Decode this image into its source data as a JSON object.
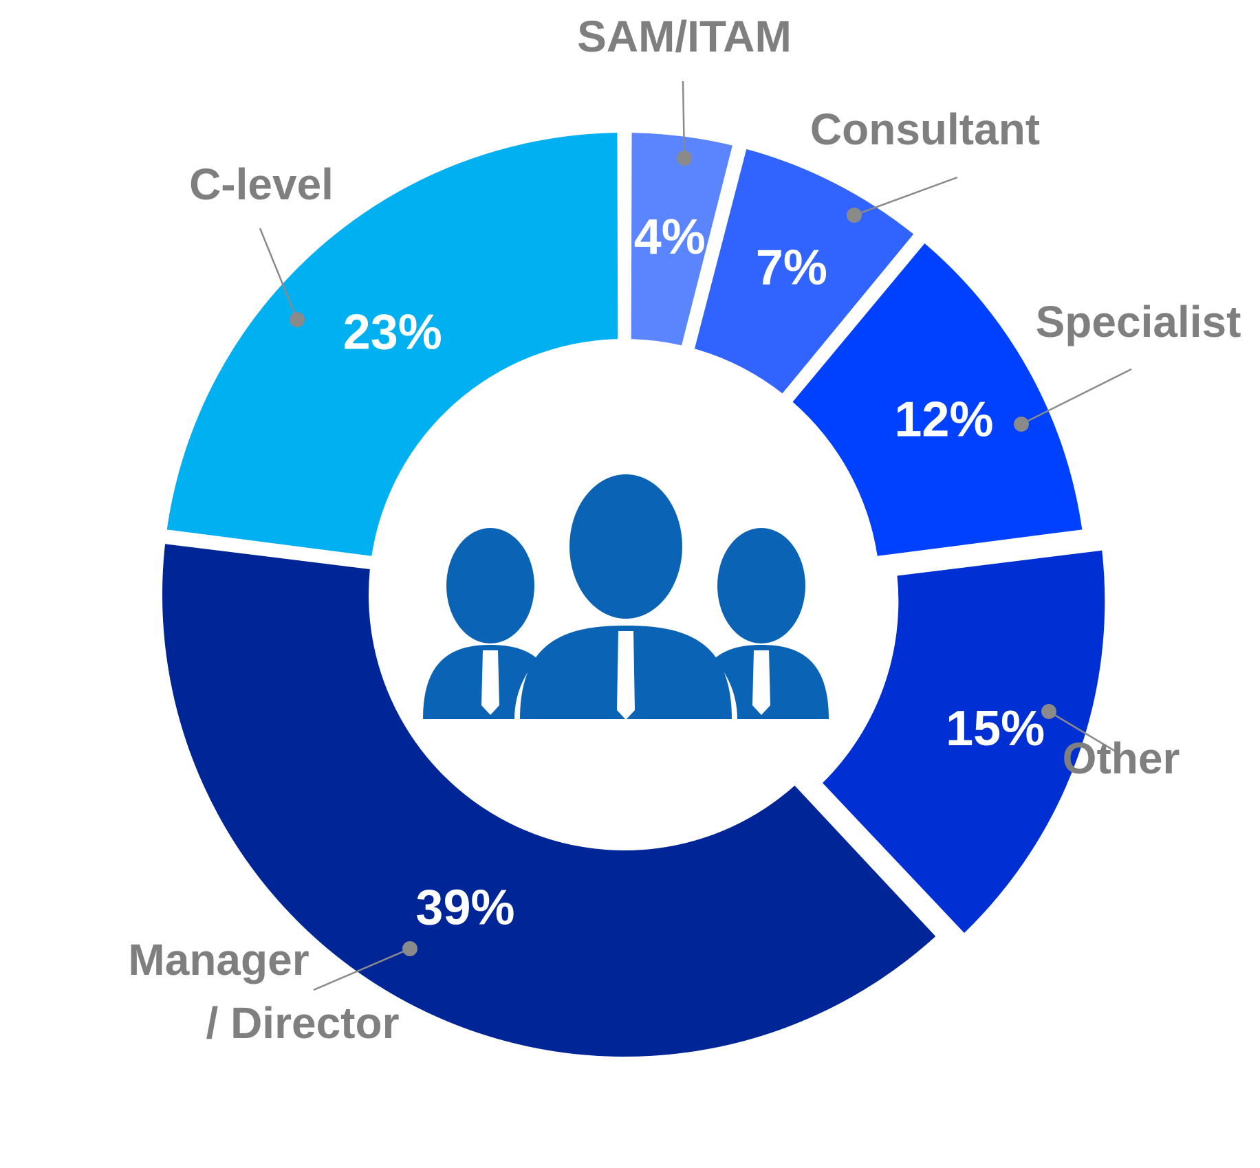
{
  "chart_data": {
    "type": "pie",
    "donut": true,
    "start_angle_deg": 0,
    "direction": "clockwise",
    "slices": [
      {
        "label": "SAM/ITAM",
        "value": 4,
        "value_label": "4%",
        "color": "#5b84ff"
      },
      {
        "label": "Consultant",
        "value": 7,
        "value_label": "7%",
        "color": "#3163ff"
      },
      {
        "label": "Specialist",
        "value": 12,
        "value_label": "12%",
        "color": "#0040ff"
      },
      {
        "label": "Other",
        "value": 15,
        "value_label": "15%",
        "color": "#0030d4"
      },
      {
        "label": "Manager / Director",
        "label_lines": [
          "Manager",
          "/ Director"
        ],
        "value": 39,
        "value_label": "39%",
        "color": "#002597"
      },
      {
        "label": "C-level",
        "value": 23,
        "value_label": "23%",
        "color": "#00b0f0"
      }
    ],
    "label_color": "#7f7f7f",
    "value_label_color": "#ffffff",
    "exploded_slice": "Other"
  },
  "center_icon": {
    "name": "people-group-icon",
    "color": "#0b63b5"
  }
}
